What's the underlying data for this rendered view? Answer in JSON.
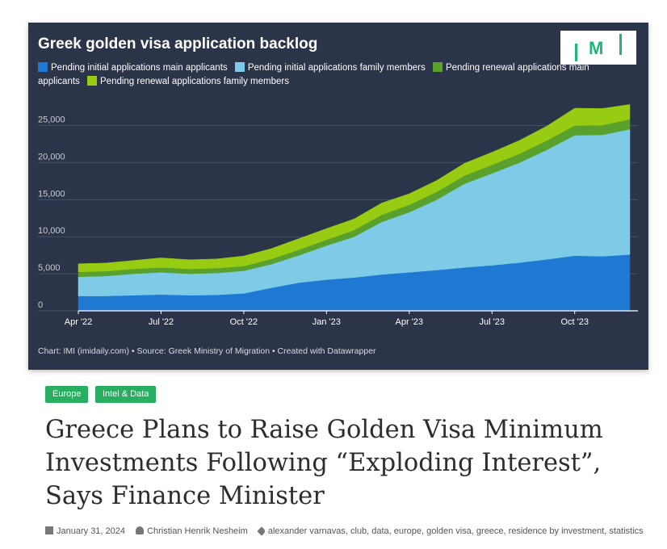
{
  "chart": {
    "title": "Greek golden visa application backlog",
    "logo_text": "M",
    "footnote": "Chart: IMI (imidaily.com) • Source: Greek Ministry of Migration • Created with Datawrapper",
    "background": "#2b3448"
  },
  "chart_data": {
    "type": "area",
    "stacked": true,
    "title": "Greek golden visa application backlog",
    "x_tick_labels": [
      "Apr '22",
      "Jul '22",
      "Oct '22",
      "Jan '23",
      "Apr '23",
      "Jul '23",
      "Oct '23"
    ],
    "y_tick_labels": [
      "0",
      "5,000",
      "10,000",
      "15,000",
      "20,000",
      "25,000"
    ],
    "ylim": [
      0,
      28000
    ],
    "x": [
      "2022-04",
      "2022-05",
      "2022-06",
      "2022-07",
      "2022-08",
      "2022-09",
      "2022-10",
      "2022-11",
      "2022-12",
      "2023-01",
      "2023-02",
      "2023-03",
      "2023-04",
      "2023-05",
      "2023-06",
      "2023-07",
      "2023-08",
      "2023-09",
      "2023-10",
      "2023-11",
      "2023-12"
    ],
    "series": [
      {
        "name": "Pending initial applications main applicants",
        "color": "#1f78d1",
        "values": [
          2000,
          2000,
          2100,
          2200,
          2100,
          2150,
          2350,
          3100,
          3800,
          4200,
          4500,
          4900,
          5200,
          5500,
          5850,
          6150,
          6500,
          6950,
          7450,
          7350,
          7600
        ]
      },
      {
        "name": "Pending initial applications family members",
        "color": "#7ecbe8",
        "values": [
          2600,
          2700,
          2900,
          3000,
          2900,
          2950,
          3050,
          3200,
          3700,
          4600,
          5500,
          7100,
          8100,
          9500,
          11300,
          12400,
          13500,
          14800,
          16250,
          16400,
          16900
        ]
      },
      {
        "name": "Pending renewal applications main applicants",
        "color": "#5aa02c",
        "values": [
          650,
          650,
          650,
          650,
          650,
          650,
          650,
          700,
          750,
          800,
          900,
          950,
          1000,
          1050,
          1100,
          1150,
          1200,
          1250,
          1300,
          1300,
          1350
        ]
      },
      {
        "name": "Pending renewal applications family members",
        "color": "#97cc12",
        "values": [
          1100,
          1100,
          1150,
          1300,
          1250,
          1250,
          1350,
          1400,
          1500,
          1500,
          1500,
          1600,
          1500,
          1550,
          1650,
          1700,
          1800,
          1950,
          2350,
          2250,
          2000
        ]
      }
    ],
    "grid": true,
    "legend_position": "top-left"
  },
  "tags": [
    "Europe",
    "Intel & Data"
  ],
  "article": {
    "headline": "Greece Plans to Raise Golden Visa Minimum Investments Following “Exploding Interest”, Says Finance Minister",
    "date": "January 31, 2024",
    "author": "Christian Henrik Nesheim",
    "keywords": "alexander varnavas, club, data, europe, golden visa, greece, residence by investment, statistics"
  },
  "icons": {
    "date": "calendar-icon",
    "author": "person-icon",
    "keywords": "tag-icon"
  }
}
